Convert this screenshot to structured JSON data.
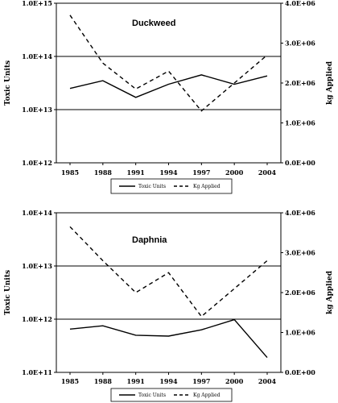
{
  "chart_data": [
    {
      "type": "line",
      "title": "Duckweed",
      "x": [
        "1985",
        "1988",
        "1991",
        "1994",
        "1997",
        "2000",
        "2004"
      ],
      "ylabel": "Toxic Units",
      "ylabel_right": "kg Applied",
      "yscale": "log",
      "ylim": [
        1000000000000.0,
        1000000000000000.0
      ],
      "yticks": [
        "1.0E+12",
        "1.0E+13",
        "1.0E+14",
        "1.0E+15"
      ],
      "y2lim": [
        0,
        4000000
      ],
      "y2ticks": [
        "0.0E+00",
        "1.0E+06",
        "2.0E+06",
        "3.0E+06",
        "4.0E+06"
      ],
      "gridlines_y": [
        10000000000000.0,
        100000000000000.0
      ],
      "legend": {
        "position": "bottom",
        "entries": [
          "Toxic Units",
          "Kg Applied"
        ]
      },
      "series": [
        {
          "name": "Toxic Units",
          "axis": "left",
          "style": "solid",
          "values": [
            25000000000000.0,
            35000000000000.0,
            17000000000000.0,
            30000000000000.0,
            45000000000000.0,
            30000000000000.0,
            43000000000000.0
          ]
        },
        {
          "name": "Kg Applied",
          "axis": "right",
          "style": "dashed",
          "values": [
            3700000,
            2500000,
            1850000,
            2300000,
            1300000,
            2000000,
            2700000
          ]
        }
      ]
    },
    {
      "type": "line",
      "title": "Daphnia",
      "x": [
        "1985",
        "1988",
        "1991",
        "1994",
        "1997",
        "2000",
        "2004"
      ],
      "ylabel": "Toxic Units",
      "ylabel_right": "kg Applied",
      "yscale": "log",
      "ylim": [
        100000000000.0,
        100000000000000.0
      ],
      "yticks": [
        "1.0E+11",
        "1.0E+12",
        "1.0E+13",
        "1.0E+14"
      ],
      "y2lim": [
        0,
        4000000
      ],
      "y2ticks": [
        "0.0E+00",
        "1.0E+06",
        "2.0E+06",
        "3.0E+06",
        "4.0E+06"
      ],
      "gridlines_y": [
        1000000000000.0,
        10000000000000.0
      ],
      "legend": {
        "position": "bottom",
        "entries": [
          "Toxic Units",
          "Kg Applied"
        ]
      },
      "series": [
        {
          "name": "Toxic Units",
          "axis": "left",
          "style": "solid",
          "values": [
            650000000000.0,
            750000000000.0,
            500000000000.0,
            480000000000.0,
            630000000000.0,
            980000000000.0,
            190000000000.0
          ]
        },
        {
          "name": "Kg Applied",
          "axis": "right",
          "style": "dashed",
          "values": [
            3650000,
            2800000,
            2000000,
            2500000,
            1400000,
            2100000,
            2800000
          ]
        }
      ]
    }
  ]
}
